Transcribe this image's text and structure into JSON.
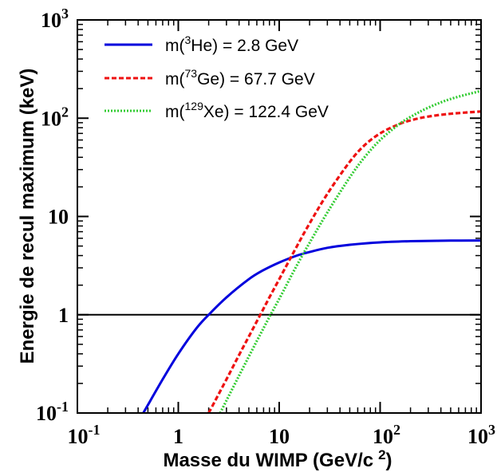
{
  "chart_data": {
    "type": "line",
    "xlabel": "Masse du WIMP (GeV/c",
    "xlabel_sup": "2",
    "xlabel_close": ")",
    "ylabel": "Energie de recul maximum (keV)",
    "xscale": "log",
    "yscale": "log",
    "xlim": [
      0.1,
      1000
    ],
    "ylim": [
      0.1,
      1000
    ],
    "x_tick_labels": [
      {
        "v": 0.1,
        "base": "10",
        "exp": "-1"
      },
      {
        "v": 1,
        "base": "1",
        "exp": ""
      },
      {
        "v": 10,
        "base": "10",
        "exp": ""
      },
      {
        "v": 100,
        "base": "10",
        "exp": "2"
      },
      {
        "v": 1000,
        "base": "10",
        "exp": "3"
      }
    ],
    "y_tick_labels": [
      {
        "v": 0.1,
        "base": "10",
        "exp": "-1"
      },
      {
        "v": 1,
        "base": "1",
        "exp": ""
      },
      {
        "v": 10,
        "base": "10",
        "exp": ""
      },
      {
        "v": 100,
        "base": "10",
        "exp": "2"
      },
      {
        "v": 1000,
        "base": "10",
        "exp": "3"
      }
    ],
    "reference_line": {
      "y": 1,
      "color": "#000000"
    },
    "legend_position": "top-left",
    "series": [
      {
        "legend_pre": "m(",
        "legend_sup": "3",
        "legend_post": "He) = 2.8 GeV",
        "color": "#0000dd",
        "style": "solid",
        "x": [
          0.45,
          0.7,
          1,
          1.5,
          2,
          3,
          5,
          7,
          10,
          15,
          20,
          30,
          50,
          100,
          200,
          500,
          1000
        ],
        "y": [
          0.1,
          0.22,
          0.4,
          0.72,
          1.0,
          1.5,
          2.3,
          2.85,
          3.4,
          4.0,
          4.35,
          4.8,
          5.15,
          5.45,
          5.6,
          5.68,
          5.7
        ]
      },
      {
        "legend_pre": "m(",
        "legend_sup": "73",
        "legend_post": "Ge) = 67.7 GeV",
        "color": "#ee1111",
        "style": "dashed",
        "x": [
          2,
          3,
          4,
          5,
          6.5,
          8,
          10,
          15,
          20,
          30,
          50,
          70,
          100,
          150,
          200,
          300,
          500,
          1000
        ],
        "y": [
          0.1,
          0.22,
          0.39,
          0.6,
          1.0,
          1.5,
          2.3,
          5.0,
          8.5,
          17,
          36,
          53,
          70,
          86,
          95,
          104,
          111,
          117
        ]
      },
      {
        "legend_pre": "m(",
        "legend_sup": "129",
        "legend_post": "Xe) = 122.4 GeV",
        "color": "#33cc33",
        "style": "dotted",
        "x": [
          2.6,
          4,
          6,
          8,
          10,
          15,
          20,
          30,
          50,
          70,
          100,
          150,
          200,
          300,
          500,
          1000
        ],
        "y": [
          0.1,
          0.24,
          0.54,
          0.95,
          1.45,
          3.2,
          5.4,
          11,
          25,
          40,
          60,
          85,
          103,
          128,
          157,
          190
        ]
      }
    ]
  }
}
